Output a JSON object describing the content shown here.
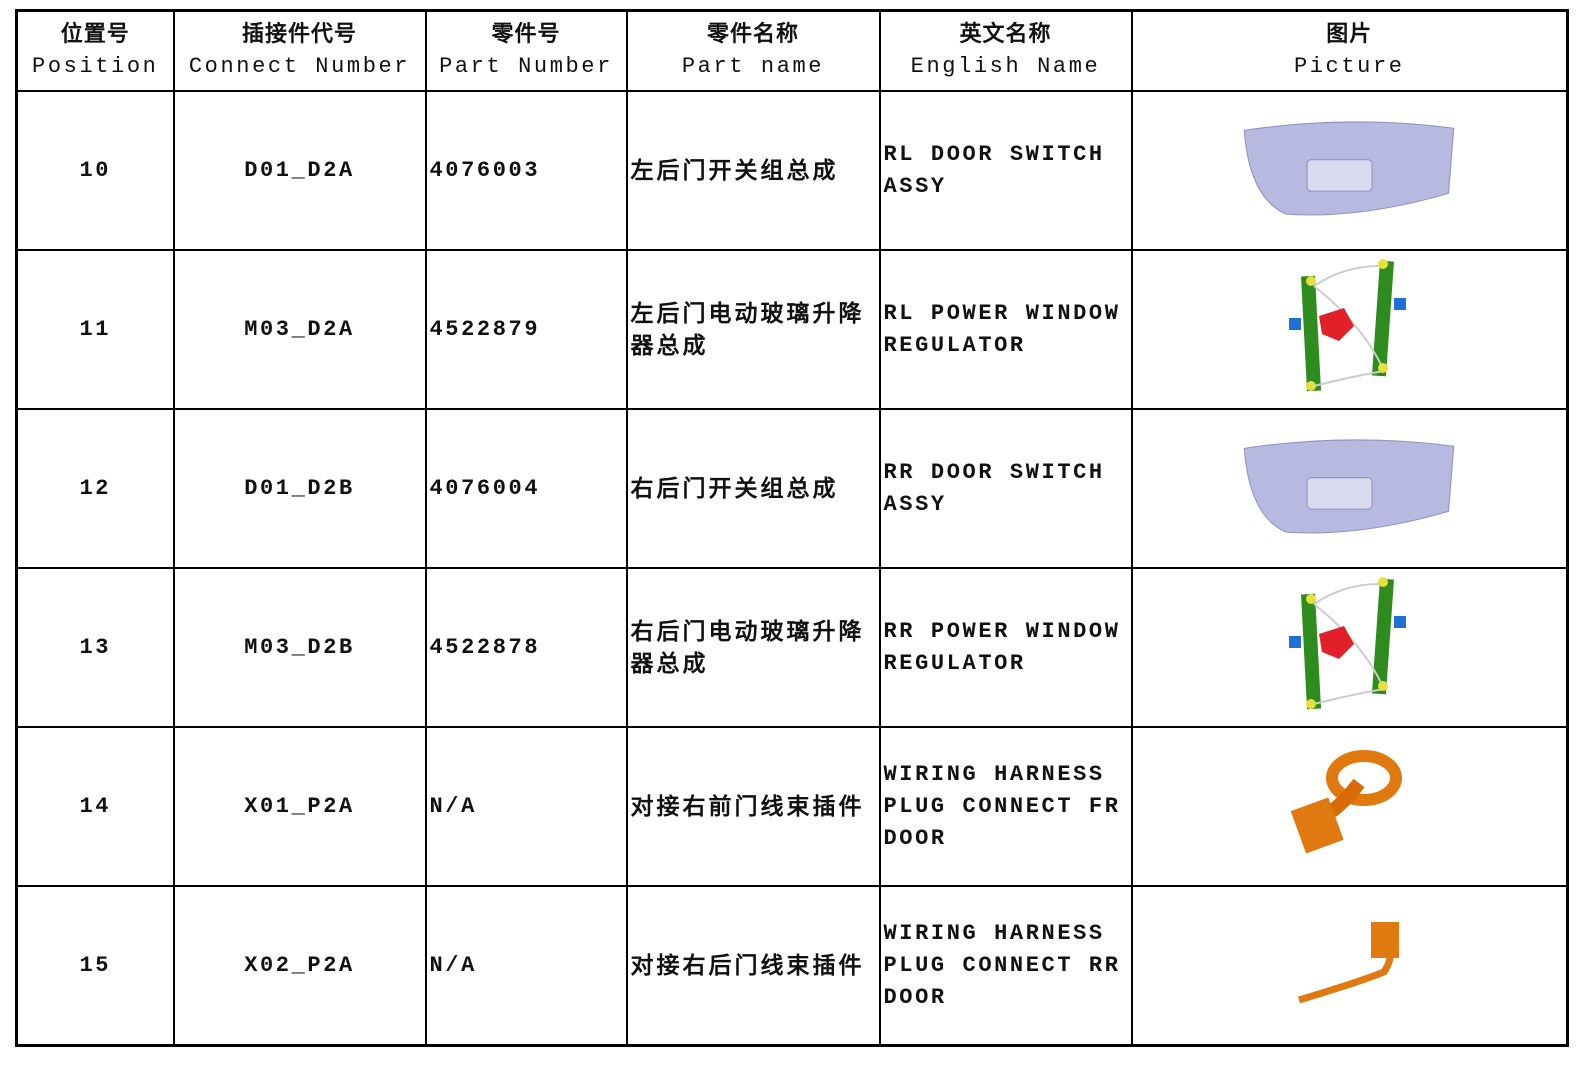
{
  "table": {
    "columns": [
      {
        "zh": "位置号",
        "en": "Position"
      },
      {
        "zh": "插接件代号",
        "en": "Connect Number"
      },
      {
        "zh": "零件号",
        "en": "Part Number"
      },
      {
        "zh": "零件名称",
        "en": "Part name"
      },
      {
        "zh": "英文名称",
        "en": "English Name"
      },
      {
        "zh": "图片",
        "en": "Picture"
      }
    ],
    "rows": [
      [
        "10",
        "D01_D2A",
        "4076003",
        "左后门开关组总成",
        "RL DOOR SWITCH ASSY"
      ],
      [
        "11",
        "M03_D2A",
        "4522879",
        "左后门电动玻璃升降器总成",
        "RL POWER WINDOW REGULATOR"
      ],
      [
        "12",
        "D01_D2B",
        "4076004",
        "右后门开关组总成",
        "RR DOOR SWITCH ASSY"
      ],
      [
        "13",
        "M03_D2B",
        "4522878",
        "右后门电动玻璃升降器总成",
        "RR POWER WINDOW REGULATOR"
      ],
      [
        "14",
        "X01_P2A",
        "N/A",
        "对接右前门线束插件",
        "WIRING HARNESS PLUG CONNECT FR DOOR"
      ],
      [
        "15",
        "X02_P2A",
        "N/A",
        "对接右后门线束插件",
        "WIRING HARNESS PLUG CONNECT RR DOOR"
      ]
    ]
  }
}
